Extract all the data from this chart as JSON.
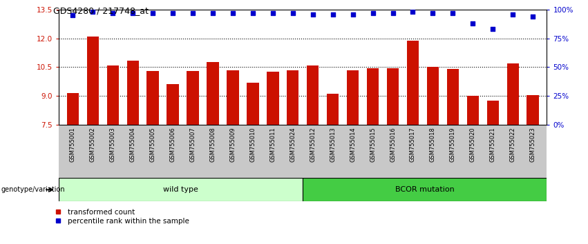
{
  "title": "GDS4280 / 217748_at",
  "categories": [
    "GSM755001",
    "GSM755002",
    "GSM755003",
    "GSM755004",
    "GSM755005",
    "GSM755006",
    "GSM755007",
    "GSM755008",
    "GSM755009",
    "GSM755010",
    "GSM755011",
    "GSM755024",
    "GSM755012",
    "GSM755013",
    "GSM755014",
    "GSM755015",
    "GSM755016",
    "GSM755017",
    "GSM755018",
    "GSM755019",
    "GSM755020",
    "GSM755021",
    "GSM755022",
    "GSM755023"
  ],
  "bar_values": [
    9.15,
    12.1,
    10.6,
    10.85,
    10.3,
    9.62,
    10.3,
    10.75,
    10.35,
    9.7,
    10.25,
    10.35,
    10.6,
    9.1,
    10.35,
    10.45,
    10.45,
    11.9,
    10.5,
    10.4,
    9.0,
    8.75,
    10.7,
    9.05
  ],
  "percentile_values": [
    95,
    98,
    97,
    97,
    97,
    97,
    97,
    97,
    97,
    97,
    97,
    97,
    96,
    96,
    96,
    97,
    97,
    98,
    97,
    97,
    88,
    83,
    96,
    94
  ],
  "group1_count": 12,
  "group1_label": "wild type",
  "group2_label": "BCOR mutation",
  "ylim_left": [
    7.5,
    13.5
  ],
  "ylim_right": [
    0,
    100
  ],
  "yticks_left": [
    7.5,
    9.0,
    10.5,
    12.0,
    13.5
  ],
  "yticks_right": [
    0,
    25,
    50,
    75,
    100
  ],
  "bar_color": "#CC1100",
  "percentile_color": "#0000CC",
  "group1_color": "#CCFFCC",
  "group2_color": "#44CC44",
  "bg_color": "#C8C8C8",
  "legend_bar_label": "transformed count",
  "legend_pct_label": "percentile rank within the sample",
  "genotype_label": "genotype/variation"
}
